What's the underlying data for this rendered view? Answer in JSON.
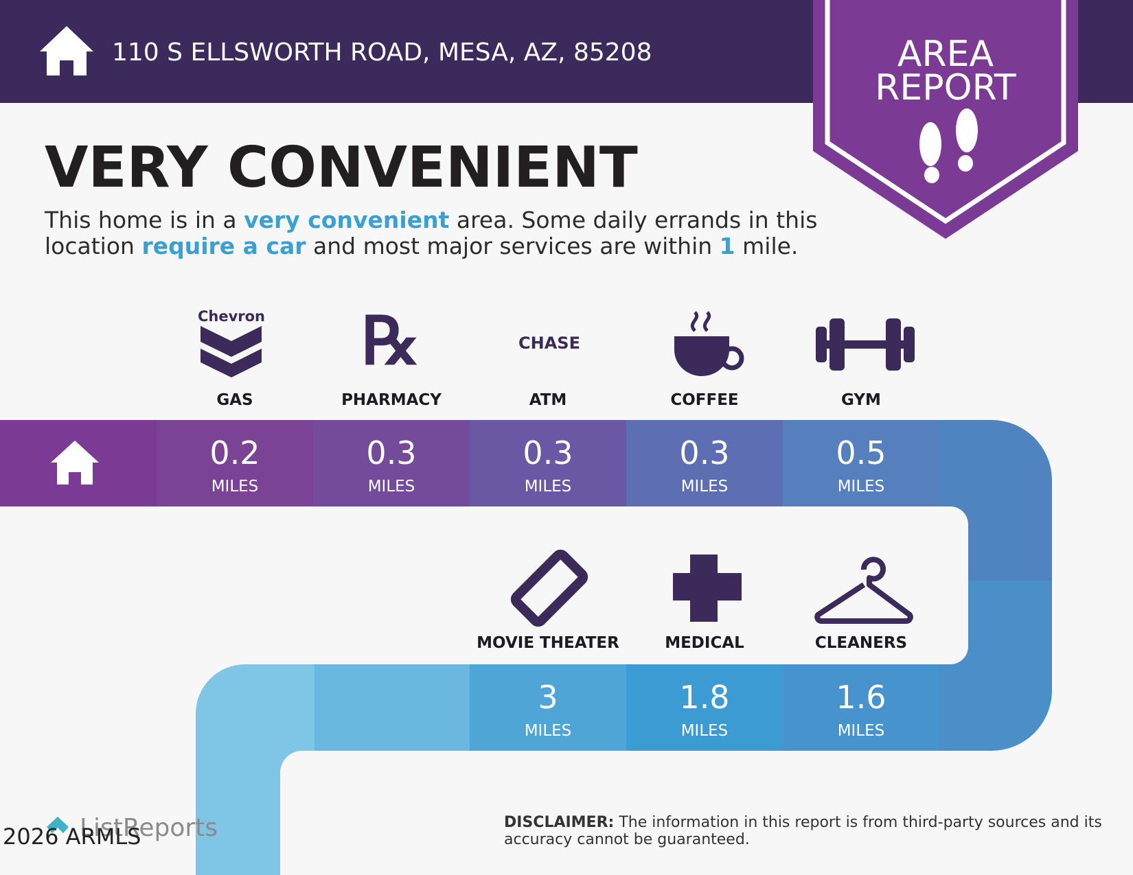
{
  "header": {
    "address": "110 S ELLSWORTH ROAD, MESA, AZ, 85208"
  },
  "badge": {
    "lines": [
      "AREA",
      "REPORT"
    ]
  },
  "headline": "VERY CONVENIENT",
  "description": [
    [
      {
        "text": "This home is in a ",
        "em": false
      },
      {
        "text": "very convenient",
        "em": true
      },
      {
        "text": " area. Some daily errands in this",
        "em": false
      }
    ],
    [
      {
        "text": "location ",
        "em": false
      },
      {
        "text": "require a car",
        "em": true
      },
      {
        "text": " and most major services are within ",
        "em": false
      },
      {
        "text": "1",
        "em": true
      },
      {
        "text": " mile.",
        "em": false
      }
    ]
  ],
  "amenities": [
    {
      "label": "GAS",
      "logo": "Chevron",
      "distance": "0.2",
      "unit": "MILES"
    },
    {
      "label": "PHARMACY",
      "distance": "0.3",
      "unit": "MILES"
    },
    {
      "label": "ATM",
      "logo": "CHASE",
      "distance": "0.3",
      "unit": "MILES"
    },
    {
      "label": "COFFEE",
      "distance": "0.3",
      "unit": "MILES"
    },
    {
      "label": "GYM",
      "distance": "0.5",
      "unit": "MILES"
    },
    {
      "label": "MOVIE THEATER",
      "distance": "3",
      "unit": "MILES"
    },
    {
      "label": "MEDICAL",
      "distance": "1.8",
      "unit": "MILES"
    },
    {
      "label": "CLEANERS",
      "distance": "1.6",
      "unit": "MILES"
    }
  ],
  "footer": {
    "brand": "ListReports",
    "watermark": "2026 ARMLS",
    "disclaimer_label": "DISCLAIMER:",
    "disclaimer": [
      "The information in this report is from third-party sources and its",
      "accuracy cannot be guaranteed."
    ]
  }
}
